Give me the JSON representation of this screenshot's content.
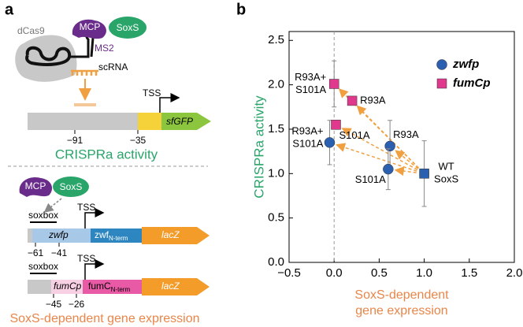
{
  "panel_a": {
    "label": "a",
    "top": {
      "dcas9": "dCas9",
      "mcp": "MCP",
      "soxs": "SoxS",
      "ms2": "MS2",
      "scrna": "scRNA",
      "tss": "TSS",
      "gene": "sfGFP",
      "positions": [
        "−91",
        "−35"
      ],
      "caption": "CRISPRa activity"
    },
    "bottom": {
      "mcp": "MCP",
      "soxs": "SoxS",
      "zwf": {
        "soxbox": "soxbox",
        "tss": "TSS",
        "promoter": "zwfp",
        "gene": "zwf",
        "subscript": "N-term",
        "reporter": "lacZ",
        "positions": [
          "−61",
          "−41"
        ]
      },
      "fumc": {
        "soxbox": "soxbox",
        "tss": "TSS",
        "promoter": "fumCp",
        "gene": "fumC",
        "subscript": "N-term",
        "reporter": "lacZ",
        "positions": [
          "−45",
          "−26"
        ]
      },
      "caption": "SoxS-dependent gene expression"
    }
  },
  "chart_data": {
    "type": "scatter",
    "panel_label": "b",
    "x_label": [
      "SoxS-dependent",
      "gene expression"
    ],
    "y_label": "CRISPRa activity",
    "xlim": [
      -0.5,
      2.0
    ],
    "ylim": [
      0,
      2.6
    ],
    "xticks": [
      {
        "value": -0.5,
        "label": "−0.5"
      },
      {
        "value": 0,
        "label": "0.0"
      },
      {
        "value": 0.5,
        "label": "0.5"
      },
      {
        "value": 1,
        "label": "1.0"
      },
      {
        "value": 1.5,
        "label": "1.5"
      },
      {
        "value": 2,
        "label": "2.0"
      }
    ],
    "yticks": [
      {
        "value": 0,
        "label": "0.0"
      },
      {
        "value": 0.5,
        "label": "0.5"
      },
      {
        "value": 1,
        "label": "1.0"
      },
      {
        "value": 1.5,
        "label": "1.5"
      },
      {
        "value": 2,
        "label": "2.0"
      },
      {
        "value": 2.5,
        "label": "2.5"
      }
    ],
    "legend": "upper right",
    "series": [
      {
        "name": "zwfp",
        "color": "#2b5fb0",
        "marker": "circle",
        "x": [
          0.62,
          0.6,
          -0.05
        ],
        "y": [
          1.31,
          1.05,
          1.35
        ],
        "xerr": [
          0.03,
          0.04,
          0.02
        ],
        "yerr": [
          0.29,
          0.23,
          0.25
        ],
        "point_labels": [
          [
            "R93A"
          ],
          [
            "S101A"
          ],
          [
            "R93A+",
            "S101A"
          ]
        ]
      },
      {
        "name": "fumCp",
        "color": "#e0388d",
        "marker": "square",
        "x": [
          0.2,
          0.02,
          0.0
        ],
        "y": [
          1.82,
          1.55,
          2.01
        ],
        "xerr": [
          0.02,
          0.02,
          0.02
        ],
        "yerr": [
          0.03,
          0.05,
          0.26
        ],
        "point_labels": [
          [
            "R93A"
          ],
          [
            "S101A"
          ],
          [
            "R93A+",
            "S101A"
          ]
        ]
      }
    ],
    "reference": {
      "label": [
        "WT",
        "SoxS"
      ],
      "x": 1.0,
      "y": 1.0,
      "xerr": 0.05,
      "yerr": 0.37,
      "color": "#2b5fb0",
      "marker": "square"
    },
    "arrow_color": "#f0a040"
  }
}
